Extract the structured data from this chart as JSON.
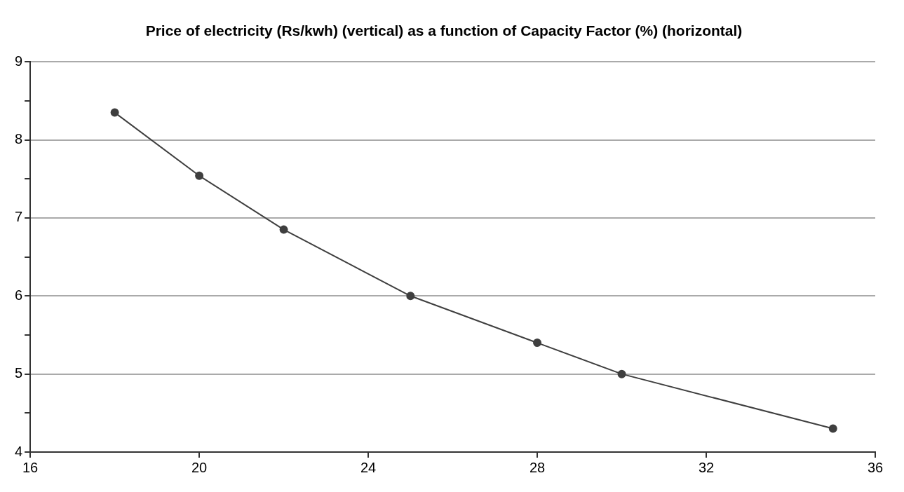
{
  "chart_data": {
    "type": "line",
    "title": "Price of electricity (Rs/kwh) (vertical) as a function of Capacity Factor (%) (horizontal)",
    "x": [
      18,
      20,
      22,
      25,
      28,
      30,
      35
    ],
    "series": [
      {
        "color": "#3f3f3f",
        "values": [
          8.35,
          7.54,
          6.85,
          6.0,
          5.4,
          5.0,
          4.3
        ]
      }
    ],
    "xlim": [
      16,
      36
    ],
    "xticks": [
      16,
      20,
      24,
      28,
      32,
      36
    ],
    "ylim": [
      4,
      9
    ],
    "yticks": [
      4,
      {
        "value": 4.5,
        "label": null
      },
      5,
      {
        "value": 5.5,
        "label": null
      },
      6,
      {
        "value": 6.5,
        "label": null
      },
      7,
      {
        "value": 7.5,
        "label": null
      },
      8,
      {
        "value": 8.5,
        "label": null
      },
      9
    ],
    "grid": "y",
    "marker": "circle",
    "line_style": "solid",
    "legend": false
  }
}
